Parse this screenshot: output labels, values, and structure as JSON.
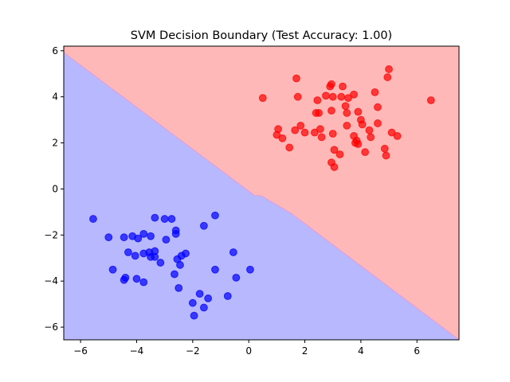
{
  "chart_data": {
    "type": "scatter",
    "title": "SVM Decision Boundary (Test Accuracy: 1.00)",
    "xlabel": "",
    "ylabel": "",
    "xlim": [
      -6.6,
      7.5
    ],
    "ylim": [
      -6.55,
      6.2
    ],
    "xticks": [
      -6,
      -4,
      -2,
      0,
      2,
      4,
      6
    ],
    "yticks": [
      -6,
      -4,
      -2,
      0,
      2,
      4,
      6
    ],
    "grid": false,
    "legend": "none",
    "colors": {
      "class_pos_region": "#ffb8b8",
      "class_neg_region": "#b8b8ff",
      "class_pos_points": "#ff0000",
      "class_neg_points": "#0000ff"
    },
    "decision_boundary": [
      [
        -6.6,
        5.92
      ],
      [
        0.2,
        -0.28
      ],
      [
        0.45,
        -0.3
      ],
      [
        1.5,
        -1.05
      ],
      [
        7.5,
        -6.55
      ]
    ],
    "series": [
      {
        "color": "#ff0000",
        "points": [
          [
            0.5,
            3.95
          ],
          [
            1.0,
            2.35
          ],
          [
            1.05,
            2.6
          ],
          [
            1.2,
            2.2
          ],
          [
            1.45,
            1.8
          ],
          [
            1.65,
            2.55
          ],
          [
            1.7,
            4.8
          ],
          [
            1.75,
            4.0
          ],
          [
            1.85,
            2.75
          ],
          [
            2.0,
            2.45
          ],
          [
            2.35,
            2.45
          ],
          [
            2.4,
            3.3
          ],
          [
            2.45,
            3.85
          ],
          [
            2.5,
            3.3
          ],
          [
            2.55,
            2.6
          ],
          [
            2.6,
            2.25
          ],
          [
            2.75,
            4.05
          ],
          [
            2.9,
            4.45
          ],
          [
            2.95,
            4.55
          ],
          [
            2.95,
            1.15
          ],
          [
            2.95,
            3.4
          ],
          [
            3.0,
            4.0
          ],
          [
            3.0,
            2.4
          ],
          [
            3.05,
            1.7
          ],
          [
            3.05,
            0.95
          ],
          [
            3.25,
            1.5
          ],
          [
            3.3,
            4.0
          ],
          [
            3.35,
            4.45
          ],
          [
            3.45,
            3.6
          ],
          [
            3.5,
            2.75
          ],
          [
            3.55,
            3.95
          ],
          [
            3.5,
            3.3
          ],
          [
            3.75,
            2.3
          ],
          [
            3.75,
            4.1
          ],
          [
            3.8,
            2.0
          ],
          [
            3.85,
            2.1
          ],
          [
            3.9,
            1.95
          ],
          [
            3.9,
            3.35
          ],
          [
            4.0,
            3.0
          ],
          [
            4.05,
            2.8
          ],
          [
            4.15,
            1.6
          ],
          [
            4.3,
            2.55
          ],
          [
            4.35,
            2.25
          ],
          [
            4.5,
            4.2
          ],
          [
            4.6,
            2.85
          ],
          [
            4.6,
            3.55
          ],
          [
            4.85,
            1.75
          ],
          [
            4.9,
            1.45
          ],
          [
            4.95,
            4.85
          ],
          [
            5.0,
            5.2
          ],
          [
            5.1,
            2.45
          ],
          [
            5.3,
            2.3
          ],
          [
            6.5,
            3.85
          ]
        ]
      },
      {
        "color": "#0000ff",
        "points": [
          [
            -5.55,
            -1.3
          ],
          [
            -5.0,
            -2.1
          ],
          [
            -4.85,
            -3.5
          ],
          [
            -4.45,
            -2.1
          ],
          [
            -4.45,
            -3.95
          ],
          [
            -4.4,
            -3.85
          ],
          [
            -4.3,
            -2.75
          ],
          [
            -4.15,
            -2.05
          ],
          [
            -4.05,
            -2.9
          ],
          [
            -4.0,
            -3.9
          ],
          [
            -3.95,
            -2.15
          ],
          [
            -3.75,
            -2.8
          ],
          [
            -3.75,
            -4.05
          ],
          [
            -3.75,
            -1.95
          ],
          [
            -3.55,
            -2.75
          ],
          [
            -3.5,
            -2.95
          ],
          [
            -3.5,
            -2.05
          ],
          [
            -3.35,
            -2.95
          ],
          [
            -3.35,
            -2.7
          ],
          [
            -3.35,
            -1.25
          ],
          [
            -3.15,
            -3.2
          ],
          [
            -3.0,
            -1.3
          ],
          [
            -2.95,
            -2.2
          ],
          [
            -2.75,
            -1.3
          ],
          [
            -2.65,
            -3.7
          ],
          [
            -2.6,
            -1.95
          ],
          [
            -2.6,
            -1.8
          ],
          [
            -2.55,
            -3.05
          ],
          [
            -2.5,
            -4.3
          ],
          [
            -2.45,
            -3.3
          ],
          [
            -2.4,
            -2.9
          ],
          [
            -2.25,
            -2.8
          ],
          [
            -2.0,
            -4.95
          ],
          [
            -1.95,
            -5.5
          ],
          [
            -1.75,
            -4.55
          ],
          [
            -1.6,
            -5.15
          ],
          [
            -1.6,
            -1.6
          ],
          [
            -1.45,
            -4.75
          ],
          [
            -1.2,
            -3.5
          ],
          [
            -1.2,
            -1.15
          ],
          [
            -0.75,
            -4.65
          ],
          [
            -0.55,
            -2.75
          ],
          [
            -0.45,
            -3.85
          ],
          [
            0.05,
            -3.5
          ]
        ]
      }
    ]
  }
}
